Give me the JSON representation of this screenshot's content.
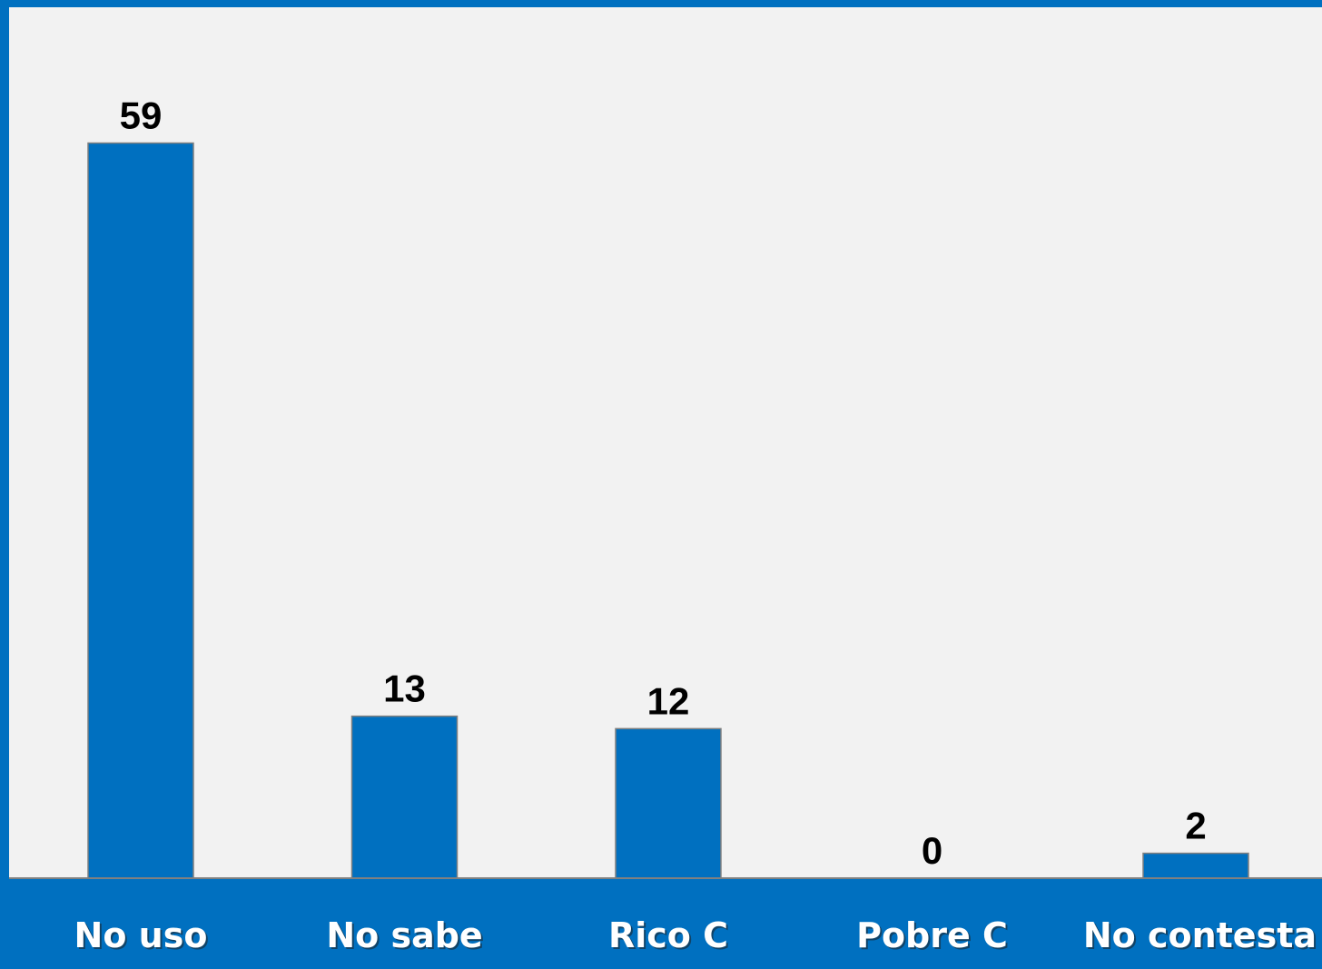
{
  "chart_data": {
    "type": "bar",
    "categories": [
      "No uso",
      "No sabe",
      "Rico C",
      "Pobre C",
      "No contesta"
    ],
    "values": [
      59,
      13,
      12,
      0,
      2
    ],
    "data_labels": [
      "59",
      "13",
      "12",
      "0",
      "2"
    ],
    "ylim": [
      0,
      60
    ],
    "grid": false,
    "legend": "none",
    "colors": {
      "bar": "#0070c0",
      "frame": "#0070c0",
      "plot_background": "#f2f2f2",
      "category_text": "#ffffff",
      "value_text": "#000000"
    }
  }
}
